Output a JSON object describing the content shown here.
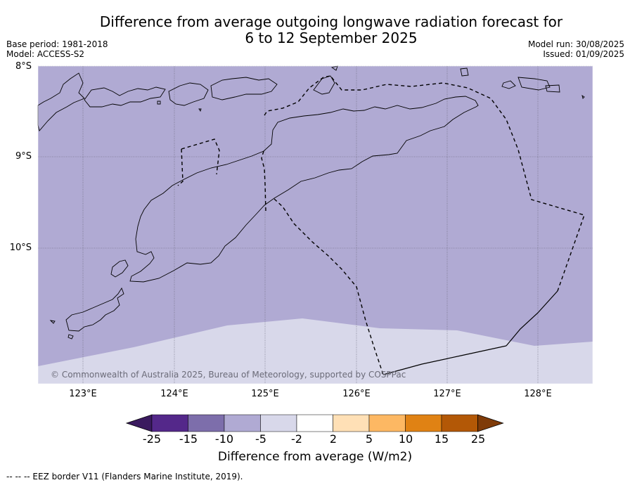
{
  "title": {
    "line1": "Difference from average outgoing longwave radiation forecast for",
    "line2": "6 to 12 September 2025"
  },
  "meta": {
    "base_period": "Base period: 1981-2018",
    "model": "Model: ACCESS-S2",
    "model_run": "Model run: 30/08/2025",
    "issued": "Issued: 01/09/2025"
  },
  "map": {
    "latitude_labels": [
      "8°S",
      "9°S",
      "10°S"
    ],
    "longitude_labels": [
      "123°E",
      "124°E",
      "125°E",
      "126°E",
      "127°E",
      "128°E"
    ],
    "extent": {
      "lon": [
        122.5,
        128.6
      ],
      "lat": [
        -11.5,
        -8.0
      ]
    },
    "gridlines": true,
    "colors": {
      "dominant_anomaly_fill": "#b0aad3",
      "southern_anomaly_fill": "#d8d8ea",
      "coastline": "#000000",
      "eez_border": "#000000"
    },
    "copyright": "© Commonwealth of Australia 2025, Bureau of Meteorology, supported by COSPPac"
  },
  "colorbar": {
    "title": "Difference from average (W/m2)",
    "ticks": [
      "-25",
      "-15",
      "-10",
      "-5",
      "-2",
      "2",
      "5",
      "10",
      "15",
      "25"
    ],
    "colors": [
      "#3a1a5f",
      "#54288a",
      "#7d6eab",
      "#b0aad3",
      "#d8d8ea",
      "#ffffff",
      "#ffe0b6",
      "#fdb863",
      "#e08214",
      "#b35806",
      "#7f3b08"
    ]
  },
  "footnote": "--  --  -- EEZ border V11 (Flanders Marine Institute, 2019)."
}
